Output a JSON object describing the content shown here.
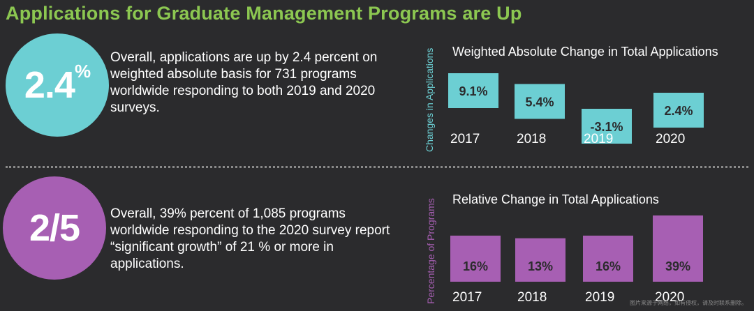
{
  "title": "Applications for Graduate Management Programs are Up",
  "stats": [
    {
      "big_value": "2.4",
      "big_suffix": "%",
      "description": "Overall, applications are up by 2.4 percent on weighted absolute basis for 731 programs worldwide responding to both 2019 and 2020 surveys.",
      "color": "#6ccfd3"
    },
    {
      "big_value": "2/5",
      "big_suffix": "",
      "description": "Overall, 39% percent of 1,085 programs worldwide responding to the 2020 survey report “significant growth” of 21 % or more in applications.",
      "color": "#a75fb3"
    }
  ],
  "watermark": "图片来源于网络，如有侵权，请及时联系删除。",
  "chart_data": [
    {
      "type": "bar",
      "title": "Weighted Absolute Change in Total Applications",
      "ylabel": "Changes in Applications",
      "categories": [
        "2017",
        "2018",
        "2019",
        "2020"
      ],
      "values": [
        9.1,
        5.4,
        -3.1,
        2.4
      ],
      "data_labels": [
        "9.1%",
        "5.4%",
        "-3.1%",
        "2.4%"
      ],
      "ylim": [
        -3.1,
        9.1
      ],
      "bar_color": "#6ccfd3",
      "grid": false
    },
    {
      "type": "bar",
      "title": "Relative Change in Total Applications",
      "ylabel": "Percentage of Programs",
      "categories": [
        "2017",
        "2018",
        "2019",
        "2020"
      ],
      "values": [
        16,
        13,
        16,
        39
      ],
      "data_labels": [
        "16%",
        "13%",
        "16%",
        "39%"
      ],
      "ylim": [
        0,
        39
      ],
      "bar_color": "#a75fb3",
      "grid": false
    }
  ]
}
